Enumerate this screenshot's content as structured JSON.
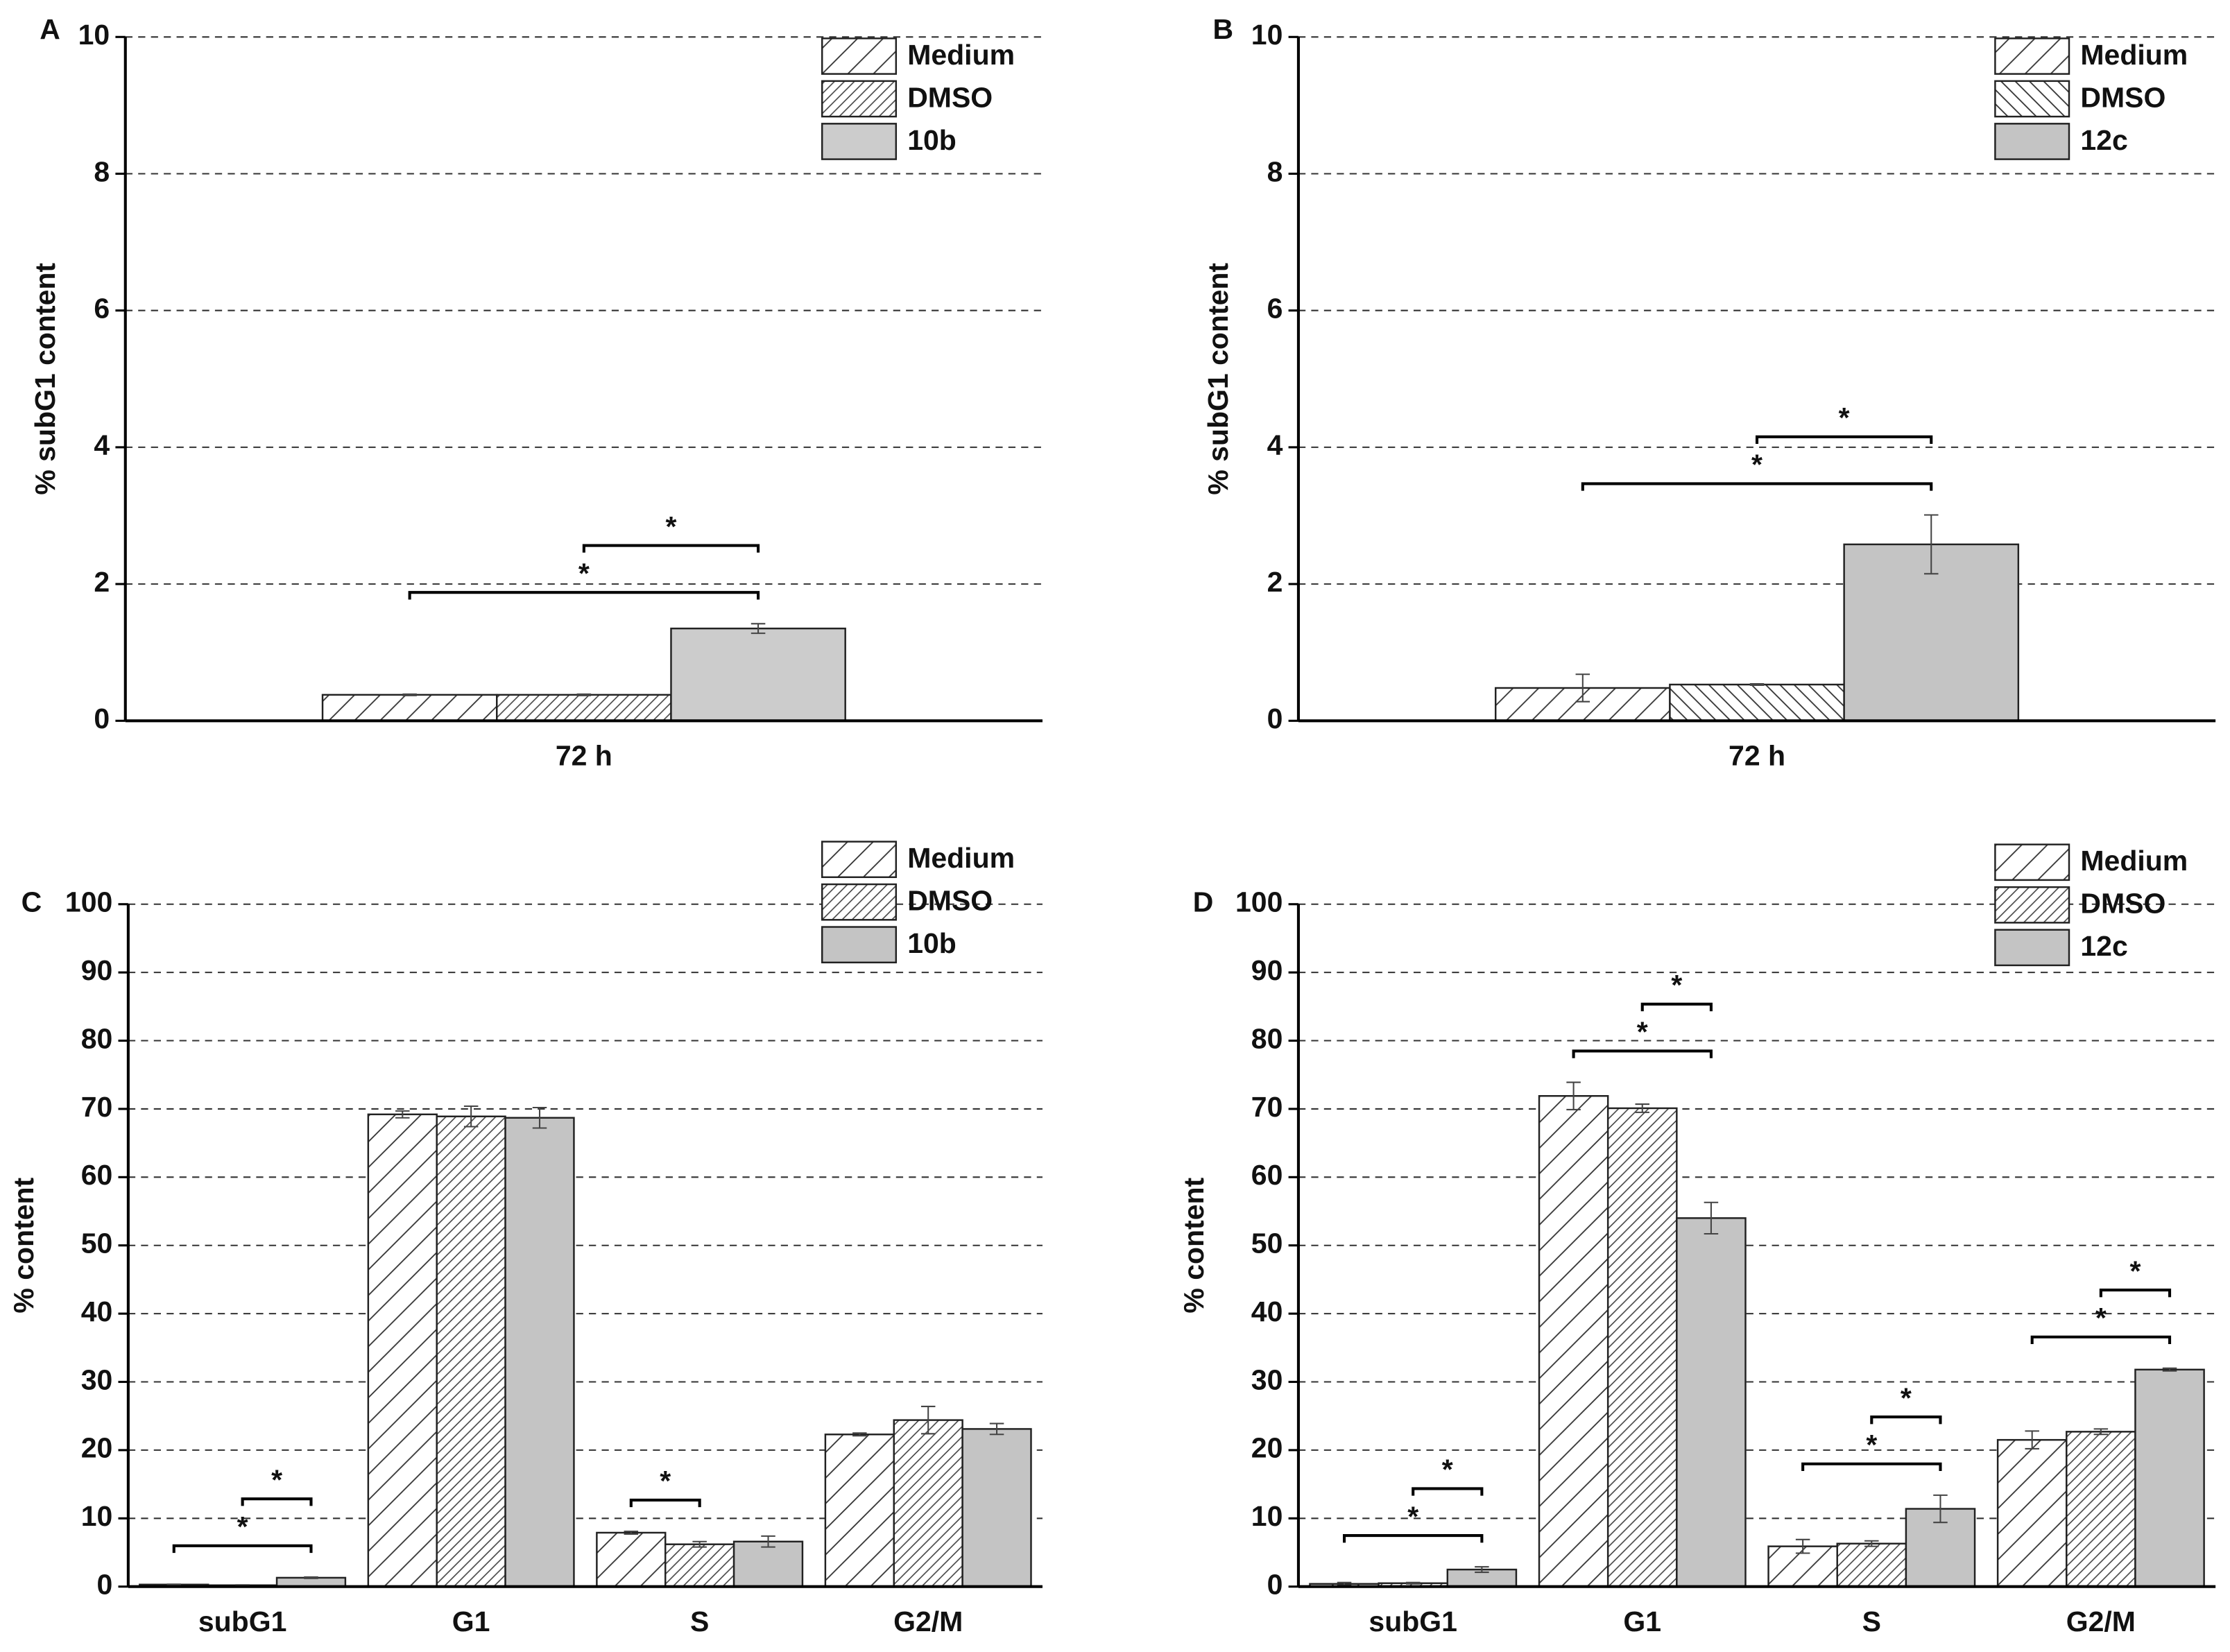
{
  "chart_data": [
    {
      "type": "bar",
      "panel_label": "A",
      "y_label": "% subG1 content",
      "categories": [
        "72 h"
      ],
      "series": [
        {
          "name": "Medium",
          "color": "#ffffff",
          "pattern": "wide-hatch",
          "values": [
            0.38
          ],
          "errors": [
            0.01
          ]
        },
        {
          "name": "DMSO",
          "color": "#ffffff",
          "pattern": "dense-hatch",
          "values": [
            0.38
          ],
          "errors": [
            0.01
          ]
        },
        {
          "name": "10b",
          "color": "#cccccc",
          "pattern": "solid",
          "values": [
            1.35
          ],
          "errors": [
            0.07
          ]
        }
      ],
      "ylim": [
        0,
        10
      ],
      "yticks": [
        0,
        2,
        4,
        6,
        8,
        10
      ],
      "grid": true,
      "legend": "top-right",
      "significance": [
        {
          "category": "72 h",
          "from": "Medium",
          "to": "10b",
          "label": "*"
        },
        {
          "category": "72 h",
          "from": "DMSO",
          "to": "10b",
          "label": "*"
        }
      ]
    },
    {
      "type": "bar",
      "panel_label": "B",
      "y_label": "% subG1 content",
      "categories": [
        "72 h"
      ],
      "series": [
        {
          "name": "Medium",
          "color": "#ffffff",
          "pattern": "wide-hatch",
          "values": [
            0.48
          ],
          "errors": [
            0.2
          ]
        },
        {
          "name": "DMSO",
          "color": "#ffffff",
          "pattern": "back-hatch",
          "values": [
            0.53
          ],
          "errors": [
            0.01
          ]
        },
        {
          "name": "12c",
          "color": "#c4c4c4",
          "pattern": "solid",
          "values": [
            2.58
          ],
          "errors": [
            0.43
          ]
        }
      ],
      "ylim": [
        0,
        10
      ],
      "yticks": [
        0,
        2,
        4,
        6,
        8,
        10
      ],
      "grid": true,
      "legend": "top-right",
      "significance": [
        {
          "category": "72 h",
          "from": "Medium",
          "to": "12c",
          "label": "*"
        },
        {
          "category": "72 h",
          "from": "DMSO",
          "to": "12c",
          "label": "*"
        }
      ]
    },
    {
      "type": "bar",
      "panel_label": "C",
      "y_label": "% content",
      "categories": [
        "subG1",
        "G1",
        "S",
        "G2/M"
      ],
      "series": [
        {
          "name": "Medium",
          "color": "#ffffff",
          "pattern": "wide-hatch",
          "values": [
            0.3,
            69.2,
            7.9,
            22.3
          ],
          "errors": [
            0.05,
            0.5,
            0.2,
            0.2
          ]
        },
        {
          "name": "DMSO",
          "color": "#ffffff",
          "pattern": "dense-hatch",
          "values": [
            0.2,
            68.9,
            6.2,
            24.4
          ],
          "errors": [
            0.05,
            1.5,
            0.4,
            2.0
          ]
        },
        {
          "name": "10b",
          "color": "#c4c4c4",
          "pattern": "solid",
          "values": [
            1.3,
            68.7,
            6.6,
            23.1
          ],
          "errors": [
            0.1,
            1.5,
            0.8,
            0.8
          ]
        }
      ],
      "ylim": [
        0,
        100
      ],
      "yticks": [
        0,
        10,
        20,
        30,
        40,
        50,
        60,
        70,
        80,
        90,
        100
      ],
      "grid": true,
      "legend": "top-right",
      "significance": [
        {
          "category": "subG1",
          "from": "Medium",
          "to": "10b",
          "label": "*"
        },
        {
          "category": "subG1",
          "from": "DMSO",
          "to": "10b",
          "label": "*"
        },
        {
          "category": "S",
          "from": "Medium",
          "to": "DMSO",
          "label": "*"
        }
      ]
    },
    {
      "type": "bar",
      "panel_label": "D",
      "y_label": "% content",
      "categories": [
        "subG1",
        "G1",
        "S",
        "G2/M"
      ],
      "series": [
        {
          "name": "Medium",
          "color": "#ffffff",
          "pattern": "wide-hatch",
          "values": [
            0.4,
            71.9,
            5.9,
            21.5
          ],
          "errors": [
            0.2,
            2.0,
            1.0,
            1.3
          ]
        },
        {
          "name": "DMSO",
          "color": "#ffffff",
          "pattern": "dense-hatch",
          "values": [
            0.5,
            70.1,
            6.3,
            22.7
          ],
          "errors": [
            0.1,
            0.6,
            0.4,
            0.4
          ]
        },
        {
          "name": "12c",
          "color": "#c4c4c4",
          "pattern": "solid",
          "values": [
            2.5,
            54.0,
            11.4,
            31.8
          ],
          "errors": [
            0.4,
            2.3,
            2.0,
            0.2
          ]
        }
      ],
      "ylim": [
        0,
        100
      ],
      "yticks": [
        0,
        10,
        20,
        30,
        40,
        50,
        60,
        70,
        80,
        90,
        100
      ],
      "grid": true,
      "legend": "top-right",
      "significance": [
        {
          "category": "subG1",
          "from": "Medium",
          "to": "12c",
          "label": "*"
        },
        {
          "category": "subG1",
          "from": "DMSO",
          "to": "12c",
          "label": "*"
        },
        {
          "category": "G1",
          "from": "Medium",
          "to": "12c",
          "label": "*"
        },
        {
          "category": "G1",
          "from": "DMSO",
          "to": "12c",
          "label": "*"
        },
        {
          "category": "S",
          "from": "Medium",
          "to": "12c",
          "label": "*"
        },
        {
          "category": "S",
          "from": "DMSO",
          "to": "12c",
          "label": "*"
        },
        {
          "category": "G2/M",
          "from": "Medium",
          "to": "12c",
          "label": "*"
        },
        {
          "category": "G2/M",
          "from": "DMSO",
          "to": "12c",
          "label": "*"
        }
      ]
    }
  ]
}
